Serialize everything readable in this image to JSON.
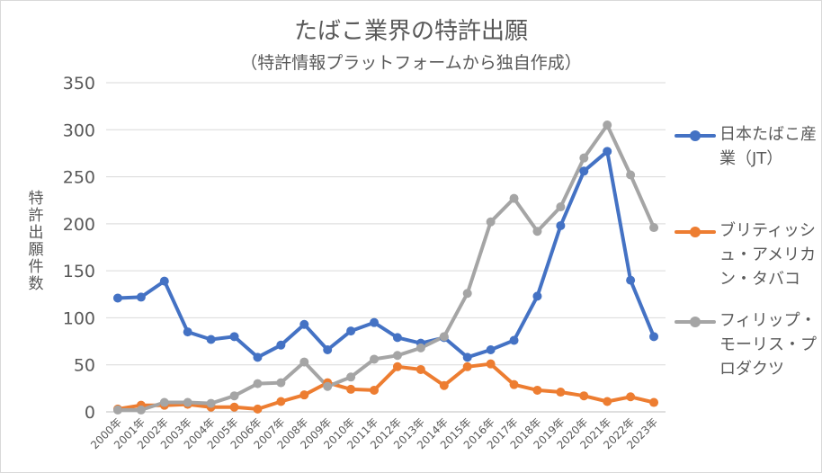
{
  "chart_data": {
    "type": "line",
    "title": "たばこ業界の特許出願",
    "subtitle": "（特許情報プラットフォームから独自作成）",
    "ylabel": "特許出願件数",
    "xlabel": "",
    "ylim": [
      0,
      350
    ],
    "yticks": [
      0,
      50,
      100,
      150,
      200,
      250,
      300,
      350
    ],
    "grid": true,
    "legend_position": "right",
    "categories": [
      "2000年",
      "2001年",
      "2002年",
      "2003年",
      "2004年",
      "2005年",
      "2006年",
      "2007年",
      "2008年",
      "2009年",
      "2010年",
      "2011年",
      "2012年",
      "2013年",
      "2014年",
      "2015年",
      "2016年",
      "2017年",
      "2018年",
      "2019年",
      "2020年",
      "2021年",
      "2022年",
      "2023年"
    ],
    "series": [
      {
        "name": "日本たばこ産業（JT）",
        "color": "#4472c4",
        "values": [
          121,
          122,
          139,
          85,
          77,
          80,
          58,
          71,
          93,
          66,
          86,
          95,
          79,
          73,
          79,
          58,
          66,
          76,
          123,
          198,
          256,
          277,
          140,
          80
        ]
      },
      {
        "name": "ブリティッシュ・アメリカン・タバコ",
        "color": "#ed7d31",
        "values": [
          3,
          7,
          7,
          8,
          5,
          5,
          3,
          11,
          18,
          31,
          24,
          23,
          48,
          45,
          28,
          48,
          51,
          29,
          23,
          21,
          17,
          11,
          16,
          10
        ]
      },
      {
        "name": "フィリップ・モーリス・プロダクツ",
        "color": "#a5a5a5",
        "values": [
          2,
          2,
          10,
          10,
          9,
          17,
          30,
          31,
          53,
          27,
          37,
          56,
          60,
          68,
          80,
          126,
          202,
          227,
          192,
          218,
          270,
          305,
          252,
          196
        ]
      }
    ]
  }
}
